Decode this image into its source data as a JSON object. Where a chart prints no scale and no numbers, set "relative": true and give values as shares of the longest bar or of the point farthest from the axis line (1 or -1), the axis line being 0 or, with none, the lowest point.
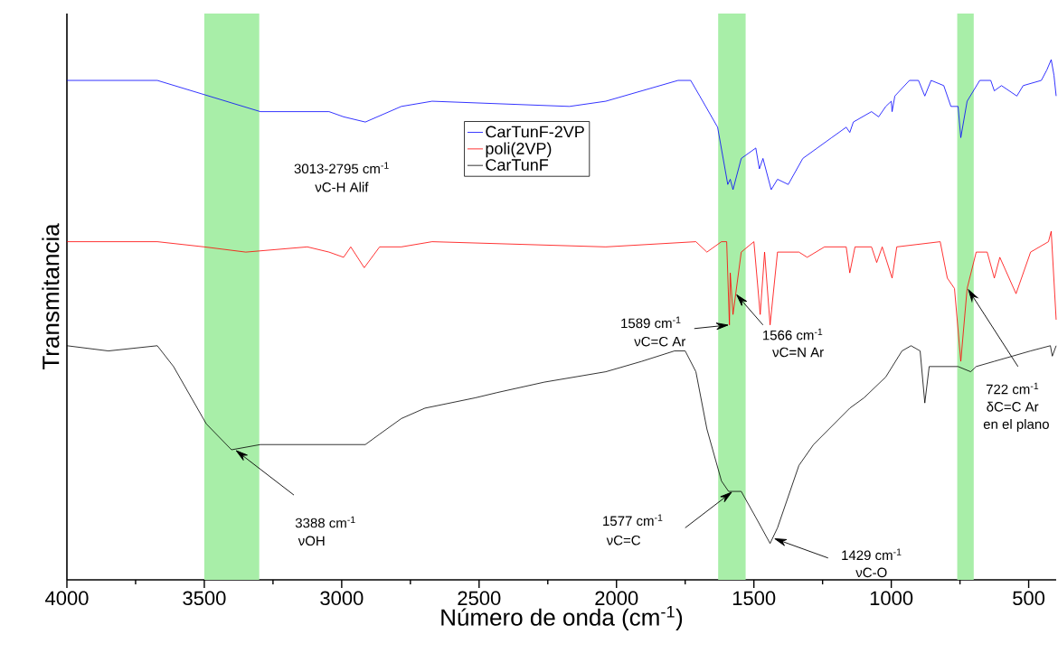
{
  "chart_data": {
    "type": "line",
    "relative": true,
    "xlabel": "Número de onda (cm$^{-1}$)",
    "ylabel": "Transmitancia",
    "xlim": [
      4000,
      400
    ],
    "xticks": [
      4000,
      3500,
      3000,
      2500,
      2000,
      1500,
      1000,
      500
    ],
    "legend": "top",
    "series": [
      {
        "name": "CarTunF-2VP",
        "color": "#0000ff",
        "x": [
          4000,
          3671,
          3296,
          3046,
          2993,
          2914,
          2783,
          2671,
          2171,
          2039,
          1776,
          1730,
          1697,
          1632,
          1595,
          1586,
          1576,
          1546,
          1493,
          1480,
          1467,
          1437,
          1414,
          1375,
          1322,
          1217,
          1164,
          1151,
          1138,
          1072,
          1046,
          1020,
          1000,
          997,
          987,
          934,
          901,
          878,
          855,
          809,
          783,
          757,
          747,
          724,
          678,
          638,
          625,
          599,
          543,
          520,
          454,
          434,
          418,
          408,
          400
        ],
        "values": [
          0.96,
          0.96,
          0.9,
          0.9,
          0.89,
          0.88,
          0.91,
          0.92,
          0.91,
          0.92,
          0.96,
          0.96,
          0.93,
          0.87,
          0.76,
          0.77,
          0.75,
          0.81,
          0.83,
          0.79,
          0.81,
          0.75,
          0.77,
          0.76,
          0.81,
          0.85,
          0.87,
          0.86,
          0.88,
          0.9,
          0.89,
          0.91,
          0.92,
          0.9,
          0.93,
          0.96,
          0.96,
          0.93,
          0.96,
          0.95,
          0.91,
          0.91,
          0.85,
          0.92,
          0.96,
          0.96,
          0.94,
          0.95,
          0.93,
          0.95,
          0.96,
          0.98,
          1.0,
          0.97,
          0.93
        ]
      },
      {
        "name": "poli(2VP)",
        "color": "#ff0000",
        "x": [
          4000,
          3671,
          3500,
          3349,
          3125,
          3046,
          2993,
          2967,
          2918,
          2862,
          2783,
          2671,
          2039,
          1711,
          1671,
          1618,
          1599,
          1589,
          1586,
          1576,
          1546,
          1500,
          1477,
          1461,
          1441,
          1414,
          1336,
          1306,
          1243,
          1164,
          1151,
          1132,
          1072,
          1053,
          1033,
          997,
          980,
          822,
          796,
          770,
          747,
          724,
          691,
          651,
          625,
          605,
          546,
          493,
          428,
          418,
          400
        ],
        "values": [
          0.65,
          0.65,
          0.64,
          0.63,
          0.64,
          0.63,
          0.62,
          0.64,
          0.6,
          0.64,
          0.64,
          0.65,
          0.64,
          0.65,
          0.63,
          0.65,
          0.65,
          0.49,
          0.59,
          0.51,
          0.63,
          0.65,
          0.51,
          0.63,
          0.49,
          0.63,
          0.63,
          0.62,
          0.64,
          0.64,
          0.59,
          0.64,
          0.64,
          0.61,
          0.64,
          0.58,
          0.64,
          0.65,
          0.58,
          0.56,
          0.42,
          0.56,
          0.63,
          0.63,
          0.58,
          0.62,
          0.55,
          0.63,
          0.65,
          0.67,
          0.5
        ]
      },
      {
        "name": "CarTunF",
        "color": "#000000",
        "x": [
          4000,
          3849,
          3671,
          3612,
          3493,
          3401,
          3296,
          3178,
          3046,
          2954,
          2914,
          2862,
          2783,
          2697,
          2513,
          2434,
          2263,
          2039,
          1908,
          1789,
          1750,
          1711,
          1671,
          1618,
          1592,
          1546,
          1493,
          1441,
          1414,
          1336,
          1283,
          1151,
          1099,
          1020,
          961,
          928,
          895,
          878,
          862,
          836,
          757,
          711,
          691,
          625,
          559,
          493,
          421,
          414,
          400
        ],
        "values": [
          0.45,
          0.44,
          0.45,
          0.41,
          0.3,
          0.25,
          0.26,
          0.26,
          0.26,
          0.26,
          0.26,
          0.28,
          0.31,
          0.33,
          0.35,
          0.36,
          0.38,
          0.4,
          0.42,
          0.44,
          0.44,
          0.4,
          0.29,
          0.19,
          0.17,
          0.17,
          0.12,
          0.07,
          0.1,
          0.22,
          0.26,
          0.33,
          0.35,
          0.39,
          0.44,
          0.45,
          0.44,
          0.34,
          0.41,
          0.41,
          0.41,
          0.4,
          0.41,
          0.42,
          0.43,
          0.44,
          0.45,
          0.43,
          0.45
        ]
      }
    ],
    "bands": [
      {
        "axis": "x",
        "from": 3500,
        "to": 3300,
        "color": "#a8eea8"
      },
      {
        "axis": "x",
        "from": 1630,
        "to": 1530,
        "color": "#a8eea8"
      },
      {
        "axis": "x",
        "from": 760,
        "to": 700,
        "color": "#a8eea8"
      }
    ],
    "annotations": [
      "3013-2795 cm$^{-1}$",
      "νC-H Alif",
      "3388 cm$^{-1}$",
      "νOH",
      "1589 cm$^{-1}$",
      "νC=C Ar",
      "1566 cm$^{-1}$",
      "νC=N Ar",
      "722 cm$^{-1}$",
      "δC=C Ar",
      "en el plano",
      "1577 cm$^{-1}$",
      "νC=C",
      "1429 cm$^{-1}$",
      "νC-O"
    ]
  }
}
